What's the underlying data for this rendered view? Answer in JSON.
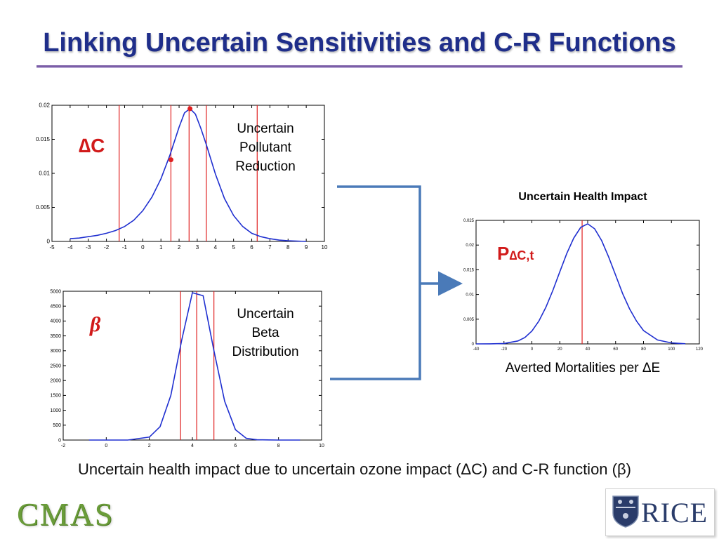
{
  "slide": {
    "title": "Linking Uncertain Sensitivities and C-R Functions",
    "bottom_caption": "Uncertain health impact due to uncertain ozone impact (ΔC) and C-R function (β)",
    "colors": {
      "title": "#1f2e8a",
      "rule": "#7b5ea7",
      "curve": "#1f2fd0",
      "marker": "#e02020",
      "arrow": "#4a7ab8"
    }
  },
  "labels": {
    "deltaC_symbol": "∆C",
    "beta_symbol": "β",
    "p_symbol": "P",
    "p_subscript": "∆C,t",
    "pollutant_caption": [
      "Uncertain",
      "Pollutant",
      "Reduction"
    ],
    "beta_caption": [
      "Uncertain",
      "Beta",
      "Distribution"
    ],
    "health_title": "Uncertain Health Impact",
    "health_xlabel": "Averted Mortalities per ΔE"
  },
  "logos": {
    "left": "CMAS",
    "right": "RICE",
    "right_icon": "rice-shield-icon"
  },
  "chart_data": [
    {
      "id": "deltaC",
      "type": "line",
      "xlim": [
        -5,
        10
      ],
      "ylim": [
        0,
        0.02
      ],
      "xticks": [
        -5,
        -4,
        -3,
        -2,
        -1,
        0,
        1,
        2,
        3,
        4,
        5,
        6,
        7,
        8,
        9,
        10
      ],
      "yticks": [
        0,
        0.005,
        0.01,
        0.015,
        0.02
      ],
      "ytick_labels": [
        "0",
        "0.005",
        "0.01",
        "0.015",
        "0.02"
      ],
      "series": [
        {
          "x": [
            -4.0,
            -3.5,
            -3.0,
            -2.5,
            -2.0,
            -1.5,
            -1.0,
            -0.5,
            0.0,
            0.5,
            1.0,
            1.5,
            2.0,
            2.3,
            2.6,
            2.9,
            3.2,
            3.5,
            4.0,
            4.5,
            5.0,
            5.5,
            6.0,
            6.5,
            7.0,
            7.5,
            8.0,
            8.5,
            9.0
          ],
          "y": [
            0.0004,
            0.0005,
            0.0007,
            0.0009,
            0.0012,
            0.0016,
            0.0022,
            0.0031,
            0.0045,
            0.0065,
            0.0092,
            0.0127,
            0.0168,
            0.0189,
            0.0195,
            0.0187,
            0.0166,
            0.0142,
            0.0099,
            0.0063,
            0.0038,
            0.0022,
            0.0012,
            0.0007,
            0.0004,
            0.0002,
            0.0001,
            5e-05,
            0.0
          ]
        }
      ],
      "vlines": [
        -1.3,
        1.55,
        2.55,
        3.5,
        6.3
      ],
      "marker_points": [
        {
          "x": 1.55,
          "y": 0.012
        },
        {
          "x": 2.6,
          "y": 0.0195
        }
      ]
    },
    {
      "id": "beta",
      "type": "line",
      "xlim": [
        -2,
        10
      ],
      "ylim": [
        0,
        5000
      ],
      "xticks": [
        -2,
        0,
        2,
        4,
        6,
        8,
        10
      ],
      "yticks": [
        0,
        500,
        1000,
        1500,
        2000,
        2500,
        3000,
        3500,
        4000,
        4500,
        5000
      ],
      "series": [
        {
          "x": [
            -0.8,
            1.0,
            2.0,
            2.5,
            3.0,
            3.5,
            4.0,
            4.5,
            5.0,
            5.5,
            6.0,
            6.5,
            7.0,
            8.0,
            9.0
          ],
          "y": [
            0,
            0,
            100,
            450,
            1500,
            3350,
            4950,
            4850,
            3000,
            1300,
            350,
            60,
            10,
            0,
            0
          ]
        }
      ],
      "vlines": [
        3.45,
        4.2,
        5.0
      ]
    },
    {
      "id": "health",
      "type": "line",
      "xlim": [
        -40,
        120
      ],
      "ylim": [
        0,
        0.025
      ],
      "xticks": [
        -40,
        -20,
        0,
        20,
        40,
        60,
        80,
        100,
        120
      ],
      "yticks": [
        0,
        0.005,
        0.01,
        0.015,
        0.02,
        0.025
      ],
      "ytick_labels": [
        "0",
        "0.005",
        "0.01",
        "0.015",
        "0.02",
        "0.025"
      ],
      "series": [
        {
          "x": [
            -40,
            -30,
            -20,
            -10,
            -5,
            0,
            5,
            10,
            15,
            20,
            25,
            30,
            35,
            40,
            45,
            50,
            55,
            60,
            65,
            70,
            75,
            80,
            90,
            100,
            110
          ],
          "y": [
            0.0,
            1e-05,
            9e-05,
            0.0006,
            0.0013,
            0.0026,
            0.0046,
            0.0074,
            0.0108,
            0.0146,
            0.0183,
            0.0214,
            0.0236,
            0.0243,
            0.0233,
            0.0209,
            0.0176,
            0.0139,
            0.0102,
            0.0071,
            0.0046,
            0.0027,
            0.0008,
            0.0002,
            3e-05
          ]
        }
      ],
      "vlines": [
        36
      ]
    }
  ]
}
